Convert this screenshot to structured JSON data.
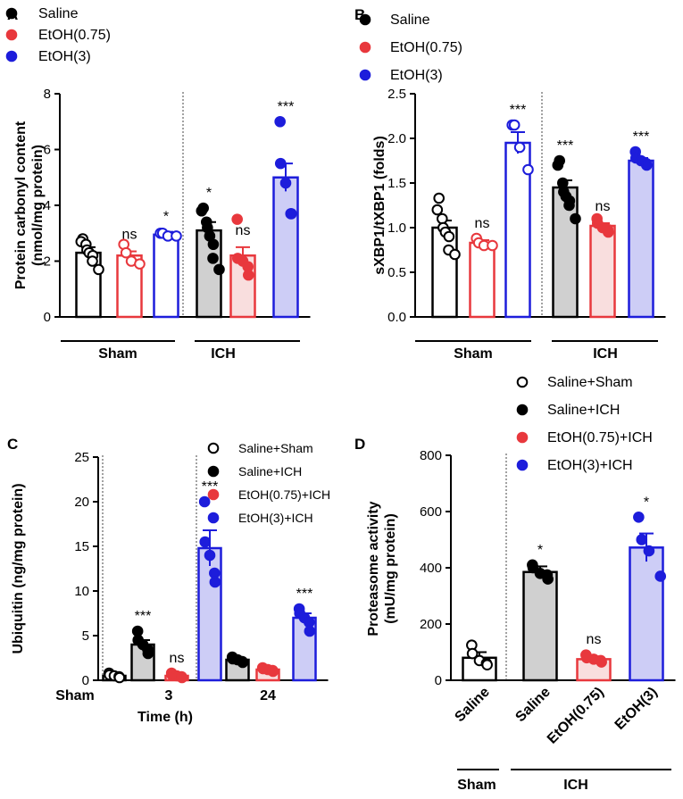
{
  "colors": {
    "saline": "#000000",
    "etoh075": "#e8383d",
    "etoh3": "#1d1ddb",
    "saline_fill": "#d0d0d0",
    "etoh075_fill": "#f9dede",
    "etoh3_fill": "#cdcdf6"
  },
  "chart_data": [
    {
      "panel": "A",
      "type": "bar",
      "ylabel": "Protein carbonyl content (nmol/mg protein)",
      "ylabel_lines": [
        "Protein carbonyl content",
        "(nmol/mg protein)"
      ],
      "ylim": [
        0,
        8
      ],
      "yticks": [
        "0",
        "2",
        "4",
        "6",
        "8"
      ],
      "groups": [
        "Sham",
        "ICH"
      ],
      "legend": [
        {
          "label": "Saline",
          "color": "saline",
          "marker": "filled"
        },
        {
          "label": "EtOH(0.75)",
          "color": "etoh075",
          "marker": "filled"
        },
        {
          "label": "EtOH(3)",
          "color": "etoh3",
          "marker": "filled"
        }
      ],
      "bars": [
        {
          "group": "Sham",
          "series": "Saline",
          "color": "saline",
          "filled": false,
          "mean": 2.3,
          "sem": 0.2,
          "sig": "",
          "points": [
            2.8,
            2.7,
            2.6,
            2.4,
            2.3,
            2.2,
            2.0,
            1.7
          ]
        },
        {
          "group": "Sham",
          "series": "EtOH(0.75)",
          "color": "etoh075",
          "filled": false,
          "mean": 2.2,
          "sem": 0.15,
          "sig": "ns",
          "points": [
            2.6,
            2.3,
            2.0,
            1.9
          ]
        },
        {
          "group": "Sham",
          "series": "EtOH(3)",
          "color": "etoh3",
          "filled": false,
          "mean": 2.95,
          "sem": 0.1,
          "sig": "*",
          "points": [
            3.0,
            3.0,
            2.9,
            2.9
          ]
        },
        {
          "group": "ICH",
          "series": "Saline",
          "color": "saline",
          "filled": true,
          "mean": 3.1,
          "sem": 0.3,
          "sig": "*",
          "points": [
            3.9,
            3.8,
            3.4,
            3.2,
            2.9,
            2.6,
            2.1,
            1.7
          ]
        },
        {
          "group": "ICH",
          "series": "EtOH(0.75)",
          "color": "etoh075",
          "filled": true,
          "mean": 2.2,
          "sem": 0.3,
          "sig": "ns",
          "points": [
            3.5,
            2.1,
            2.0,
            1.8,
            1.5
          ]
        },
        {
          "group": "ICH",
          "series": "EtOH(3)",
          "color": "etoh3",
          "filled": true,
          "mean": 5.0,
          "sem": 0.5,
          "sig": "***",
          "points": [
            7.0,
            5.5,
            4.8,
            3.7,
            3.7
          ]
        }
      ]
    },
    {
      "panel": "B",
      "type": "bar",
      "ylabel": "sXBP1/tXBP1 (folds)",
      "ylabel_lines": [
        "sXBP1/tXBP1 (folds)"
      ],
      "ylim": [
        0,
        2.5
      ],
      "yticks": [
        "0.0",
        "0.5",
        "1.0",
        "1.5",
        "2.0",
        "2.5"
      ],
      "groups": [
        "Sham",
        "ICH"
      ],
      "legend": [
        {
          "label": "Saline",
          "color": "saline",
          "marker": "filled"
        },
        {
          "label": "EtOH(0.75)",
          "color": "etoh075",
          "marker": "filled"
        },
        {
          "label": "EtOH(3)",
          "color": "etoh3",
          "marker": "filled"
        }
      ],
      "bars": [
        {
          "group": "Sham",
          "series": "Saline",
          "color": "saline",
          "filled": false,
          "mean": 1.0,
          "sem": 0.08,
          "sig": "",
          "points": [
            1.33,
            1.2,
            1.1,
            1.0,
            0.95,
            0.9,
            0.75,
            0.7
          ]
        },
        {
          "group": "Sham",
          "series": "EtOH(0.75)",
          "color": "etoh075",
          "filled": false,
          "mean": 0.83,
          "sem": 0.03,
          "sig": "ns",
          "points": [
            0.88,
            0.83,
            0.8,
            0.8
          ]
        },
        {
          "group": "Sham",
          "series": "EtOH(3)",
          "color": "etoh3",
          "filled": false,
          "mean": 1.95,
          "sem": 0.12,
          "sig": "***",
          "points": [
            2.15,
            2.15,
            1.9,
            1.65
          ]
        },
        {
          "group": "ICH",
          "series": "Saline",
          "color": "saline",
          "filled": true,
          "mean": 1.45,
          "sem": 0.08,
          "sig": "***",
          "points": [
            1.75,
            1.7,
            1.5,
            1.4,
            1.35,
            1.3,
            1.25,
            1.1
          ]
        },
        {
          "group": "ICH",
          "series": "EtOH(0.75)",
          "color": "etoh075",
          "filled": true,
          "mean": 1.02,
          "sem": 0.03,
          "sig": "ns",
          "points": [
            1.1,
            1.05,
            1.0,
            0.98,
            0.95
          ]
        },
        {
          "group": "ICH",
          "series": "EtOH(3)",
          "color": "etoh3",
          "filled": true,
          "mean": 1.75,
          "sem": 0.03,
          "sig": "***",
          "points": [
            1.85,
            1.78,
            1.75,
            1.72,
            1.7
          ]
        }
      ]
    },
    {
      "panel": "C",
      "type": "bar",
      "ylabel": "Ubiquitin (ng/mg protein)",
      "ylabel_lines": [
        "Ubiquitin (ng/mg protein)"
      ],
      "xlabel": "Time (h)",
      "ylim": [
        0,
        25
      ],
      "yticks": [
        "0",
        "5",
        "10",
        "15",
        "20",
        "25"
      ],
      "xticks": [
        "Sham",
        "3",
        "24"
      ],
      "legend": [
        {
          "label": "Saline+Sham",
          "color": "saline",
          "marker": "open"
        },
        {
          "label": "Saline+ICH",
          "color": "saline",
          "marker": "filled"
        },
        {
          "label": "EtOH(0.75)+ICH",
          "color": "etoh075",
          "marker": "filled"
        },
        {
          "label": "EtOH(3)+ICH",
          "color": "etoh3",
          "marker": "filled"
        }
      ],
      "bars": [
        {
          "tick": "Sham",
          "series": "Saline+Sham",
          "color": "saline",
          "filled": false,
          "mean": 0.5,
          "sem": 0.1,
          "sig": "",
          "points": [
            0.8,
            0.6,
            0.5,
            0.4,
            0.3
          ]
        },
        {
          "tick": "3",
          "series": "Saline+ICH",
          "color": "saline",
          "filled": true,
          "mean": 4.0,
          "sem": 0.5,
          "sig": "***",
          "points": [
            5.5,
            4.5,
            4.0,
            3.5,
            3.0
          ]
        },
        {
          "tick": "3",
          "series": "EtOH(0.75)+ICH",
          "color": "etoh075",
          "filled": true,
          "mean": 0.5,
          "sem": 0.1,
          "sig": "ns",
          "points": [
            0.8,
            0.6,
            0.5,
            0.4,
            0.3
          ]
        },
        {
          "tick": "3",
          "series": "EtOH(3)+ICH",
          "color": "etoh3",
          "filled": true,
          "mean": 14.8,
          "sem": 2.0,
          "sig": "***",
          "points": [
            20.0,
            15.5,
            14.0,
            12.0,
            11.0
          ]
        },
        {
          "tick": "24",
          "series": "Saline+ICH",
          "color": "saline",
          "filled": true,
          "mean": 2.3,
          "sem": 0.2,
          "sig": "",
          "points": [
            2.6,
            2.4,
            2.3,
            2.1,
            2.0
          ]
        },
        {
          "tick": "24",
          "series": "EtOH(0.75)+ICH",
          "color": "etoh075",
          "filled": true,
          "mean": 1.2,
          "sem": 0.1,
          "sig": "",
          "points": [
            1.4,
            1.3,
            1.2,
            1.1,
            1.0
          ]
        },
        {
          "tick": "24",
          "series": "EtOH(3)+ICH",
          "color": "etoh3",
          "filled": true,
          "mean": 7.0,
          "sem": 0.5,
          "sig": "***",
          "points": [
            8.0,
            7.5,
            7.0,
            6.5,
            5.5
          ]
        }
      ]
    },
    {
      "panel": "D",
      "type": "bar",
      "ylabel": "Proteasome activity (mU/mg protein)",
      "ylabel_lines": [
        "Proteasome activity",
        "(mU/mg protein)"
      ],
      "ylim": [
        0,
        800
      ],
      "yticks": [
        "0",
        "200",
        "400",
        "600",
        "800"
      ],
      "xticks": [
        "Saline",
        "Saline",
        "EtOH(0.75)",
        "EtOH(3)"
      ],
      "groups": [
        "Sham",
        "ICH"
      ],
      "legend": [
        {
          "label": "Saline+Sham",
          "color": "saline",
          "marker": "open"
        },
        {
          "label": "Saline+ICH",
          "color": "saline",
          "marker": "filled"
        },
        {
          "label": "EtOH(0.75)+ICH",
          "color": "etoh075",
          "marker": "filled"
        },
        {
          "label": "EtOH(3)+ICH",
          "color": "etoh3",
          "marker": "filled"
        }
      ],
      "bars": [
        {
          "series": "Saline+Sham",
          "color": "saline",
          "filled": false,
          "mean": 80,
          "sem": 20,
          "sig": "",
          "points": [
            125,
            95,
            70,
            60,
            55
          ]
        },
        {
          "series": "Saline+ICH",
          "color": "saline",
          "filled": true,
          "mean": 385,
          "sem": 20,
          "sig": "*",
          "points": [
            410,
            400,
            380,
            375,
            360
          ]
        },
        {
          "series": "EtOH(0.75)+ICH",
          "color": "etoh075",
          "filled": true,
          "mean": 75,
          "sem": 10,
          "sig": "ns",
          "points": [
            90,
            80,
            75,
            70,
            65
          ]
        },
        {
          "series": "EtOH(3)+ICH",
          "color": "etoh3",
          "filled": true,
          "mean": 472,
          "sem": 50,
          "sig": "*",
          "points": [
            580,
            500,
            460,
            370
          ]
        }
      ]
    }
  ]
}
